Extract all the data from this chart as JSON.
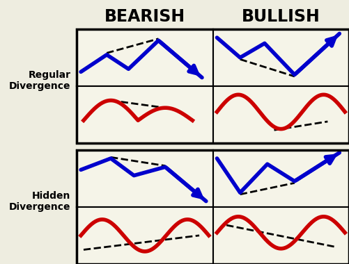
{
  "title_bearish": "BEARISH",
  "title_bullish": "BULLISH",
  "label_regular": "Regular\nDivergence",
  "label_hidden": "Hidden\nDivergence",
  "bg_color": "#eeede0",
  "cell_bg": "#f5f4e8",
  "line_blue": "#0000cc",
  "line_red": "#cc0000",
  "line_dashed": "#000000",
  "lw_main": 4.0,
  "lw_dashed": 2.0,
  "fig_w": 5.01,
  "fig_h": 3.8,
  "dpi": 100
}
